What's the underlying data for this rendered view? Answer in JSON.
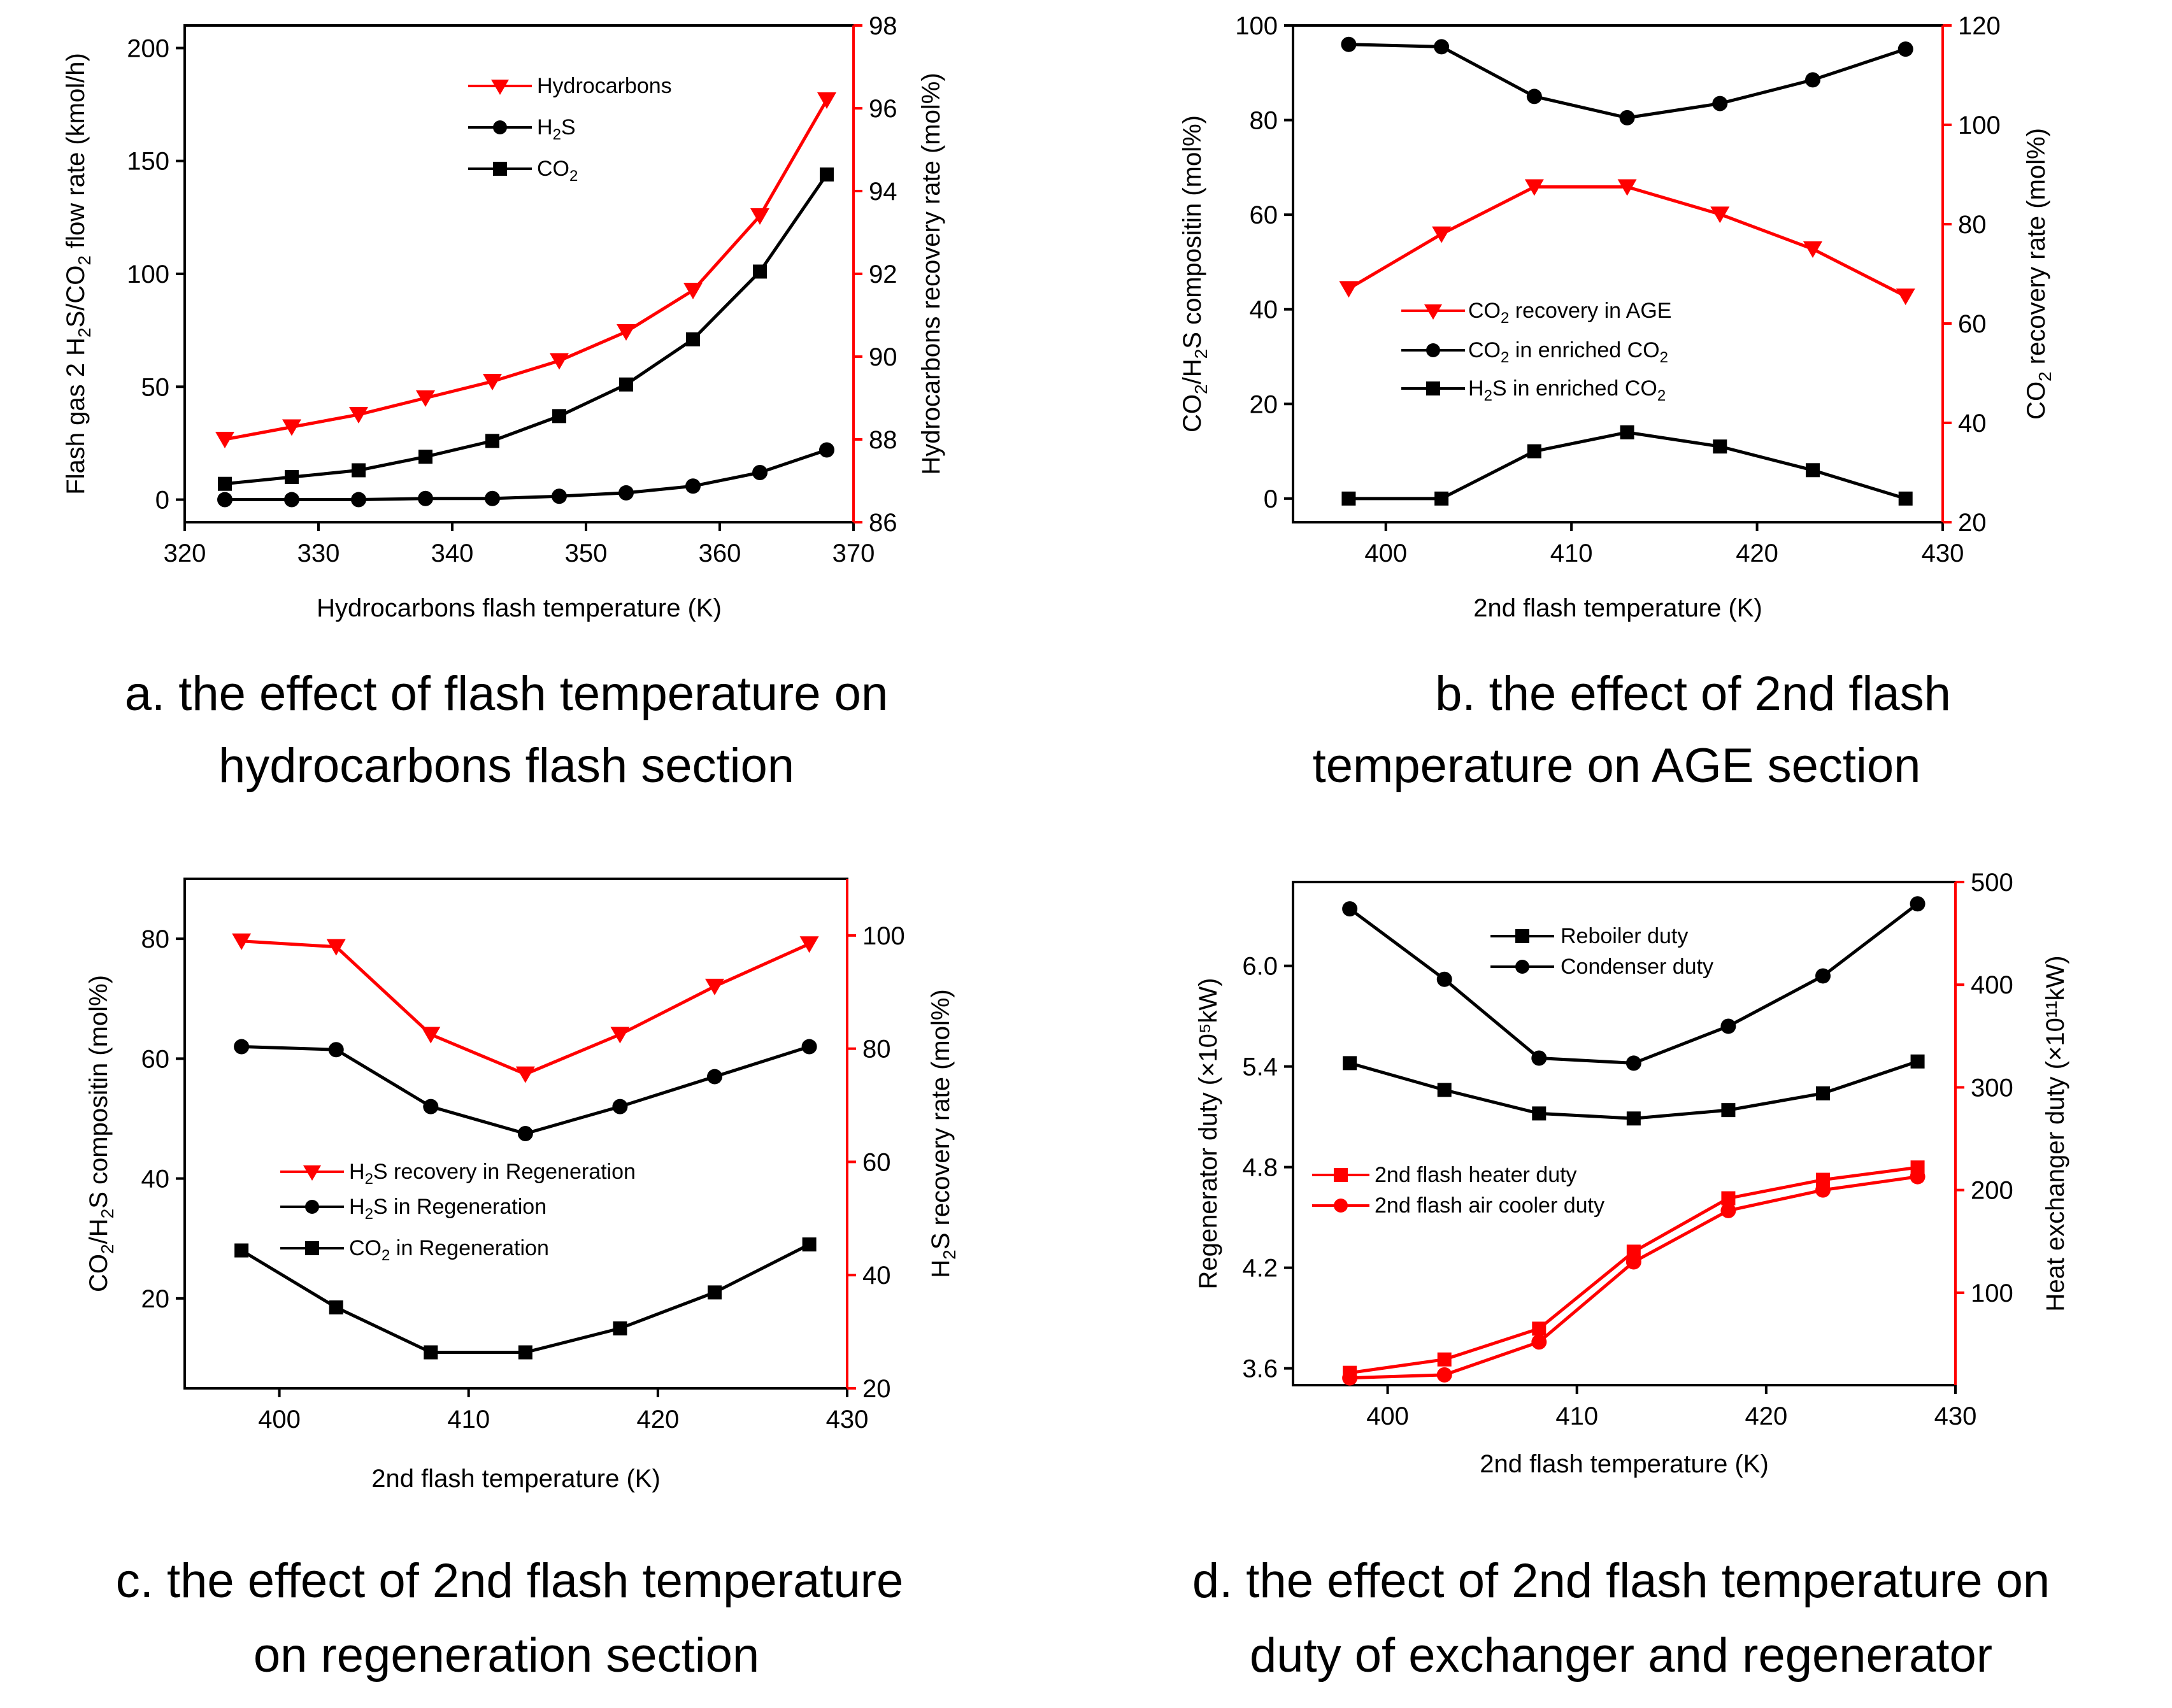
{
  "captions": {
    "a_line1": "a. the effect of flash temperature on",
    "a_line2": "hydrocarbons flash section",
    "b_line1": "b. the effect of 2nd flash",
    "b_line2": "temperature on AGE section",
    "c_line1": "c. the effect of 2nd flash temperature",
    "c_line2": "on regeneration section",
    "d_line1": "d. the effect of 2nd flash temperature on",
    "d_line2": "duty of exchanger and regenerator"
  },
  "colors": {
    "black": "#000000",
    "red": "#ff0000"
  },
  "chart_data": [
    {
      "id": "a",
      "type": "line",
      "xlabel": "Hydrocarbons flash temperature (K)",
      "ylabel": "Flash gas 2 H2S/CO2 flow rate (kmol/h)",
      "y2label": "Hydrocarbons recovery rate (mol%)",
      "xlim": [
        320,
        370
      ],
      "xticks": [
        320,
        330,
        340,
        350,
        360,
        370
      ],
      "ylim": [
        -10,
        210
      ],
      "yticks": [
        0,
        50,
        100,
        150,
        200
      ],
      "y2lim": [
        86,
        98
      ],
      "y2ticks": [
        86,
        88,
        90,
        92,
        94,
        96,
        98
      ],
      "x": [
        323,
        328,
        333,
        338,
        343,
        348,
        353,
        358,
        363,
        368
      ],
      "legend_position": "top-center",
      "series": [
        {
          "name": "Hydrocarbons",
          "axis": "right",
          "color": "#ff0000",
          "marker": "triangle-down",
          "values": [
            88.0,
            88.3,
            88.6,
            89.0,
            89.4,
            89.9,
            90.6,
            91.6,
            93.4,
            96.2
          ]
        },
        {
          "name": "H2S",
          "axis": "left",
          "color": "#000000",
          "marker": "circle",
          "values": [
            0,
            0,
            0,
            0.5,
            0.5,
            1.5,
            3,
            6,
            12,
            22
          ]
        },
        {
          "name": "CO2",
          "axis": "left",
          "color": "#000000",
          "marker": "square",
          "values": [
            7,
            10,
            13,
            19,
            26,
            37,
            51,
            71,
            101,
            144
          ]
        }
      ]
    },
    {
      "id": "b",
      "type": "line",
      "xlabel": "2nd flash temperature (K)",
      "ylabel": "CO2/H2S compositin (mol%)",
      "y2label": "CO2 recovery rate (mol%)",
      "xlim": [
        395,
        430
      ],
      "xticks": [
        400,
        410,
        420,
        430
      ],
      "ylim": [
        -5,
        100
      ],
      "yticks": [
        0,
        20,
        40,
        60,
        80,
        100
      ],
      "y2lim": [
        20,
        120
      ],
      "y2ticks": [
        20,
        40,
        60,
        80,
        100,
        120
      ],
      "x": [
        398,
        403,
        408,
        413,
        418,
        423,
        428
      ],
      "legend_position": "middle-center",
      "series": [
        {
          "name": "CO2 recovery in AGE",
          "axis": "right",
          "color": "#ff0000",
          "marker": "triangle-down",
          "values": [
            67,
            78,
            87.5,
            87.5,
            82,
            75,
            65.5
          ]
        },
        {
          "name": "CO2 in enriched CO2",
          "axis": "left",
          "color": "#000000",
          "marker": "circle",
          "values": [
            96,
            95.5,
            85,
            80.5,
            83.5,
            88.5,
            95
          ]
        },
        {
          "name": "H2S in enriched CO2",
          "axis": "left",
          "color": "#000000",
          "marker": "square",
          "values": [
            0,
            0,
            10,
            14,
            11,
            6,
            0
          ]
        }
      ]
    },
    {
      "id": "c",
      "type": "line",
      "xlabel": "2nd flash temperature (K)",
      "ylabel": "CO2/H2S compositin (mol%)",
      "y2label": "H2S recovery rate (mol%)",
      "xlim": [
        395,
        430
      ],
      "xticks": [
        400,
        410,
        420,
        430
      ],
      "ylim": [
        5,
        90
      ],
      "yticks": [
        20,
        40,
        60,
        80
      ],
      "y2lim": [
        20,
        110
      ],
      "y2ticks": [
        20,
        40,
        60,
        80,
        100
      ],
      "x": [
        398,
        403,
        408,
        413,
        418,
        423,
        428
      ],
      "legend_position": "lower-left",
      "series": [
        {
          "name": "H2S recovery in Regeneration",
          "axis": "right",
          "color": "#ff0000",
          "marker": "triangle-down",
          "values": [
            99,
            98,
            82.5,
            75.5,
            82.5,
            91,
            98.5
          ]
        },
        {
          "name": "H2S in Regeneration",
          "axis": "left",
          "color": "#000000",
          "marker": "circle",
          "values": [
            62,
            61.5,
            52,
            47.5,
            52,
            57,
            62
          ]
        },
        {
          "name": "CO2 in Regeneration",
          "axis": "left",
          "color": "#000000",
          "marker": "square",
          "values": [
            28,
            18.5,
            11,
            11,
            15,
            21,
            29
          ]
        }
      ]
    },
    {
      "id": "d",
      "type": "line",
      "xlabel": "2nd flash temperature (K)",
      "ylabel": "Regenerator duty (×10⁵kW)",
      "y2label": "Heat exchanger duty (×10¹¹kW)",
      "xlim": [
        395,
        430
      ],
      "xticks": [
        400,
        410,
        420,
        430
      ],
      "ylim": [
        3.5,
        6.5
      ],
      "yticks": [
        3.6,
        4.2,
        4.8,
        5.4,
        6.0
      ],
      "y2lim": [
        10,
        500
      ],
      "y2ticks": [
        100,
        200,
        300,
        400,
        500
      ],
      "x": [
        398,
        403,
        408,
        413,
        418,
        423,
        428
      ],
      "legend_position": "top-center / middle-left",
      "series": [
        {
          "name": "Reboiler duty",
          "axis": "left",
          "color": "#000000",
          "marker": "square",
          "values": [
            5.42,
            5.26,
            5.12,
            5.09,
            5.14,
            5.24,
            5.43
          ]
        },
        {
          "name": "Condenser duty",
          "axis": "left",
          "color": "#000000",
          "marker": "circle",
          "values": [
            6.34,
            5.92,
            5.45,
            5.42,
            5.64,
            5.94,
            6.37
          ]
        },
        {
          "name": "2nd flash heater duty",
          "axis": "right",
          "color": "#ff0000",
          "marker": "square",
          "values": [
            22,
            35,
            65,
            140,
            192,
            210,
            222
          ]
        },
        {
          "name": "2nd flash air cooler duty",
          "axis": "right",
          "color": "#ff0000",
          "marker": "circle",
          "values": [
            17,
            20,
            52,
            130,
            180,
            200,
            213
          ]
        }
      ]
    }
  ]
}
